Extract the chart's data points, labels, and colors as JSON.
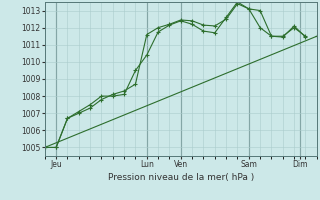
{
  "background_color": "#cce8e8",
  "grid_color": "#aacccc",
  "line_color": "#2d6e2d",
  "xlim": [
    0,
    96
  ],
  "ylim": [
    1004.5,
    1013.5
  ],
  "yticks": [
    1005,
    1006,
    1007,
    1008,
    1009,
    1010,
    1011,
    1012,
    1013
  ],
  "xtick_positions": [
    4,
    36,
    48,
    72,
    90
  ],
  "xtick_labels": [
    "Jeu",
    "Lun",
    "Ven",
    "Sam",
    "Dim"
  ],
  "vlines": [
    4,
    36,
    48,
    72,
    90
  ],
  "xlabel": "Pression niveau de la mer( hPa )",
  "series1_straight": {
    "x": [
      0,
      96
    ],
    "y": [
      1005.0,
      1011.5
    ]
  },
  "series2": {
    "x": [
      0,
      4,
      8,
      12,
      16,
      20,
      24,
      28,
      32,
      36,
      40,
      44,
      48,
      52,
      56,
      60,
      64,
      68,
      72,
      76,
      80,
      84,
      88,
      92
    ],
    "y": [
      1005.0,
      1005.0,
      1006.7,
      1007.0,
      1007.3,
      1007.8,
      1008.1,
      1008.3,
      1008.7,
      1011.6,
      1012.0,
      1012.2,
      1012.45,
      1012.4,
      1012.15,
      1012.1,
      1012.5,
      1013.4,
      1013.1,
      1012.0,
      1011.5,
      1011.45,
      1012.1,
      1011.45
    ]
  },
  "series3": {
    "x": [
      0,
      4,
      8,
      12,
      16,
      20,
      24,
      28,
      32,
      36,
      40,
      44,
      48,
      52,
      56,
      60,
      64,
      68,
      72,
      76,
      80,
      84,
      88,
      92
    ],
    "y": [
      1005.0,
      1005.0,
      1006.7,
      1007.1,
      1007.5,
      1008.0,
      1008.0,
      1008.1,
      1009.5,
      1010.4,
      1011.75,
      1012.15,
      1012.4,
      1012.2,
      1011.8,
      1011.7,
      1012.6,
      1013.5,
      1013.1,
      1013.0,
      1011.5,
      1011.5,
      1012.0,
      1011.5
    ]
  }
}
